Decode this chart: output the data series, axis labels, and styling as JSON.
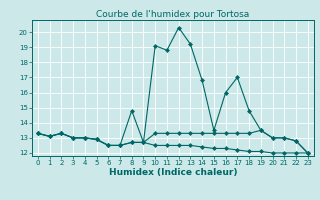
{
  "title": "Courbe de l'humidex pour Tortosa",
  "xlabel": "Humidex (Indice chaleur)",
  "bg_color": "#cce8e8",
  "grid_color": "#ffffff",
  "line_color": "#006666",
  "x": [
    0,
    1,
    2,
    3,
    4,
    5,
    6,
    7,
    8,
    9,
    10,
    11,
    12,
    13,
    14,
    15,
    16,
    17,
    18,
    19,
    20,
    21,
    22,
    23
  ],
  "line1": [
    13.3,
    13.1,
    13.3,
    13.0,
    13.0,
    12.9,
    12.5,
    12.5,
    14.8,
    12.7,
    19.1,
    18.8,
    20.3,
    19.2,
    16.8,
    13.5,
    16.0,
    17.0,
    14.8,
    13.5,
    13.0,
    13.0,
    12.8,
    12.0
  ],
  "line2": [
    13.3,
    13.1,
    13.3,
    13.0,
    13.0,
    12.9,
    12.5,
    12.5,
    12.7,
    12.7,
    13.3,
    13.3,
    13.3,
    13.3,
    13.3,
    13.3,
    13.3,
    13.3,
    13.3,
    13.5,
    13.0,
    13.0,
    12.8,
    12.0
  ],
  "line3": [
    13.3,
    13.1,
    13.3,
    13.0,
    13.0,
    12.9,
    12.5,
    12.5,
    12.7,
    12.7,
    12.5,
    12.5,
    12.5,
    12.5,
    12.4,
    12.3,
    12.3,
    12.2,
    12.1,
    12.1,
    12.0,
    12.0,
    12.0,
    12.0
  ],
  "ylim": [
    11.8,
    20.8
  ],
  "yticks": [
    12,
    13,
    14,
    15,
    16,
    17,
    18,
    19,
    20
  ],
  "xticks": [
    0,
    1,
    2,
    3,
    4,
    5,
    6,
    7,
    8,
    9,
    10,
    11,
    12,
    13,
    14,
    15,
    16,
    17,
    18,
    19,
    20,
    21,
    22,
    23
  ],
  "xlim": [
    -0.5,
    23.5
  ],
  "marker": "D",
  "markersize": 2.0,
  "linewidth": 0.8,
  "title_fontsize": 6.5,
  "xlabel_fontsize": 6.5,
  "tick_fontsize": 5.0
}
